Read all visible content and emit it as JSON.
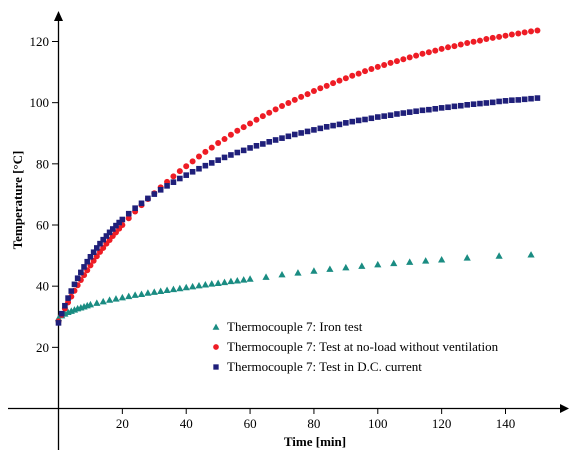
{
  "chart_data": {
    "type": "scatter",
    "title": "",
    "xlabel": "Time [min]",
    "ylabel": "Temperature [°C]",
    "xlim": [
      -16,
      162
    ],
    "ylim": [
      -4,
      128
    ],
    "x_ticks": [
      20,
      40,
      60,
      80,
      100,
      120,
      140
    ],
    "y_ticks": [
      20,
      40,
      60,
      80,
      100,
      120
    ],
    "grid": false,
    "legend_position": "lower-right",
    "series": [
      {
        "name": "Thermocouple 7: Iron test",
        "marker": "triangle",
        "color": "#1a8c82",
        "x": [
          0,
          1,
          2,
          3,
          4,
          5,
          6,
          7,
          8,
          9,
          10,
          12,
          14,
          16,
          18,
          20,
          22,
          24,
          26,
          28,
          30,
          32,
          34,
          36,
          38,
          40,
          42,
          44,
          46,
          48,
          50,
          52,
          54,
          56,
          58,
          60,
          65,
          70,
          75,
          80,
          85,
          90,
          95,
          100,
          105,
          110,
          115,
          120,
          128,
          138,
          148
        ],
        "y": [
          29.5,
          30.4,
          31.0,
          31.5,
          31.9,
          32.3,
          32.7,
          33.0,
          33.3,
          33.7,
          34.0,
          34.5,
          35.0,
          35.5,
          35.9,
          36.3,
          36.7,
          37.1,
          37.4,
          37.8,
          38.1,
          38.4,
          38.7,
          39.0,
          39.3,
          39.6,
          39.9,
          40.2,
          40.5,
          40.8,
          41.0,
          41.3,
          41.6,
          41.8,
          42.1,
          42.4,
          43.0,
          43.8,
          44.4,
          45.0,
          45.6,
          46.1,
          46.6,
          47.1,
          47.5,
          47.9,
          48.3,
          48.7,
          49.3,
          49.9,
          50.3
        ]
      },
      {
        "name": "Thermocouple 7: Test at no-load without ventilation",
        "marker": "circle",
        "color": "#ee1c25",
        "x": [
          0,
          1,
          2,
          3,
          4,
          5,
          6,
          7,
          8,
          9,
          10,
          11,
          12,
          13,
          14,
          15,
          16,
          17,
          18,
          19,
          20,
          22,
          24,
          26,
          28,
          30,
          32,
          34,
          36,
          38,
          40,
          42,
          44,
          46,
          48,
          50,
          52,
          54,
          56,
          58,
          60,
          62,
          64,
          66,
          68,
          70,
          72,
          74,
          76,
          78,
          80,
          82,
          84,
          86,
          88,
          90,
          92,
          94,
          96,
          98,
          100,
          102,
          104,
          106,
          108,
          110,
          112,
          114,
          116,
          118,
          120,
          122,
          124,
          126,
          128,
          130,
          132,
          134,
          136,
          138,
          140,
          142,
          144,
          146,
          148,
          150
        ],
        "y": [
          28.5,
          30.6,
          32.7,
          34.7,
          36.6,
          38.5,
          40.3,
          42.0,
          43.6,
          45.2,
          46.8,
          48.3,
          49.8,
          51.2,
          52.5,
          53.9,
          55.1,
          56.4,
          57.6,
          58.8,
          60.0,
          62.2,
          64.4,
          66.5,
          68.5,
          70.4,
          72.3,
          74.1,
          75.9,
          77.6,
          79.2,
          80.8,
          82.4,
          83.9,
          85.3,
          86.8,
          88.1,
          89.5,
          90.8,
          92.0,
          93.2,
          94.4,
          95.6,
          96.7,
          97.8,
          98.9,
          99.9,
          100.9,
          101.9,
          102.8,
          103.8,
          104.7,
          105.5,
          106.4,
          107.2,
          108.0,
          108.8,
          109.5,
          110.3,
          111.0,
          111.7,
          112.3,
          113.0,
          113.6,
          114.2,
          114.8,
          115.4,
          116.0,
          116.5,
          117.0,
          117.6,
          118.1,
          118.5,
          119.0,
          119.5,
          119.9,
          120.3,
          120.8,
          121.2,
          121.5,
          121.9,
          122.3,
          122.6,
          123.0,
          123.3,
          123.6
        ]
      },
      {
        "name": "Thermocouple 7: Test in D.C. current",
        "marker": "square",
        "color": "#1f1f7a",
        "x": [
          0,
          1,
          2,
          3,
          4,
          5,
          6,
          7,
          8,
          9,
          10,
          11,
          12,
          13,
          14,
          15,
          16,
          17,
          18,
          19,
          20,
          22,
          24,
          26,
          28,
          30,
          32,
          34,
          36,
          38,
          40,
          42,
          44,
          46,
          48,
          50,
          52,
          54,
          56,
          58,
          60,
          62,
          64,
          66,
          68,
          70,
          72,
          74,
          76,
          78,
          80,
          82,
          84,
          86,
          88,
          90,
          92,
          94,
          96,
          98,
          100,
          102,
          104,
          106,
          108,
          110,
          112,
          114,
          116,
          118,
          120,
          122,
          124,
          126,
          128,
          130,
          132,
          134,
          136,
          138,
          140,
          142,
          144,
          146,
          148,
          150
        ],
        "y": [
          28.0,
          31.0,
          33.6,
          36.1,
          38.4,
          40.6,
          42.6,
          44.5,
          46.3,
          48.0,
          49.6,
          51.1,
          52.5,
          53.9,
          55.2,
          56.4,
          57.6,
          58.7,
          59.8,
          60.8,
          61.8,
          63.7,
          65.5,
          67.1,
          68.7,
          70.1,
          71.5,
          72.8,
          74.0,
          75.2,
          76.3,
          77.4,
          78.4,
          79.4,
          80.3,
          81.2,
          82.1,
          82.9,
          83.7,
          84.4,
          85.2,
          85.9,
          86.5,
          87.2,
          87.8,
          88.4,
          89.0,
          89.6,
          90.1,
          90.6,
          91.1,
          91.6,
          92.1,
          92.5,
          92.9,
          93.4,
          93.8,
          94.2,
          94.5,
          94.9,
          95.3,
          95.6,
          95.9,
          96.3,
          96.6,
          96.9,
          97.2,
          97.5,
          97.7,
          98.0,
          98.3,
          98.5,
          98.8,
          99.0,
          99.3,
          99.5,
          99.7,
          99.9,
          100.1,
          100.4,
          100.6,
          100.8,
          100.9,
          101.1,
          101.3,
          101.5
        ]
      }
    ]
  }
}
